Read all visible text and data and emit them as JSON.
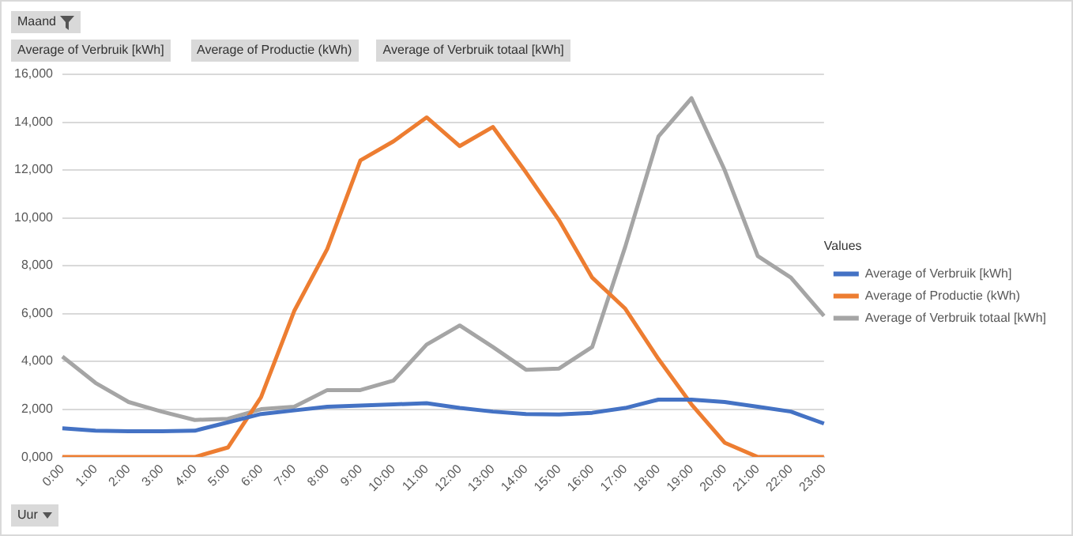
{
  "chart_data": {
    "type": "line",
    "categories": [
      "0:00",
      "1:00",
      "2:00",
      "3:00",
      "4:00",
      "5:00",
      "6:00",
      "7:00",
      "8:00",
      "9:00",
      "10:00",
      "11:00",
      "12:00",
      "13:00",
      "14:00",
      "15:00",
      "16:00",
      "17:00",
      "18:00",
      "19:00",
      "20:00",
      "21:00",
      "22:00",
      "23:00"
    ],
    "series": [
      {
        "name": "Average of Verbruik [kWh]",
        "color": "#4472c4",
        "values": [
          1200,
          1100,
          1080,
          1080,
          1100,
          1450,
          1800,
          1950,
          2100,
          2150,
          2200,
          2250,
          2050,
          1900,
          1800,
          1780,
          1850,
          2050,
          2400,
          2400,
          2300,
          2100,
          1900,
          1400
        ]
      },
      {
        "name": "Average of Productie (kWh)",
        "color": "#ed7d31",
        "values": [
          0,
          0,
          0,
          0,
          0,
          400,
          2500,
          6100,
          8700,
          12400,
          13200,
          14200,
          13000,
          13800,
          11900,
          9900,
          7500,
          6200,
          4100,
          2200,
          600,
          0,
          0,
          0
        ]
      },
      {
        "name": "Average of Verbruik totaal [kWh]",
        "color": "#a5a5a5",
        "values": [
          4200,
          3100,
          2300,
          1900,
          1550,
          1600,
          2000,
          2100,
          2800,
          2800,
          3200,
          4700,
          5500,
          4600,
          3650,
          3700,
          4600,
          8800,
          13400,
          15000,
          12000,
          8400,
          7500,
          5900
        ]
      }
    ],
    "ylim": [
      0,
      16000
    ],
    "yticks": [
      {
        "value": 0,
        "label": "0,000"
      },
      {
        "value": 2000,
        "label": "2,000"
      },
      {
        "value": 4000,
        "label": "4,000"
      },
      {
        "value": 6000,
        "label": "6,000"
      },
      {
        "value": 8000,
        "label": "8,000"
      },
      {
        "value": 10000,
        "label": "10,000"
      },
      {
        "value": 12000,
        "label": "12,000"
      },
      {
        "value": 14000,
        "label": "14,000"
      },
      {
        "value": 16000,
        "label": "16,000"
      }
    ],
    "grid": "y",
    "legend": "right",
    "legend_title": "Values",
    "marker": "none",
    "line_style": "solid",
    "annotations": [
      "Maand",
      "Average of Verbruik [kWh]",
      "Average of Productie (kWh)",
      "Average of Verbruik totaal [kWh]",
      "Uur"
    ]
  }
}
